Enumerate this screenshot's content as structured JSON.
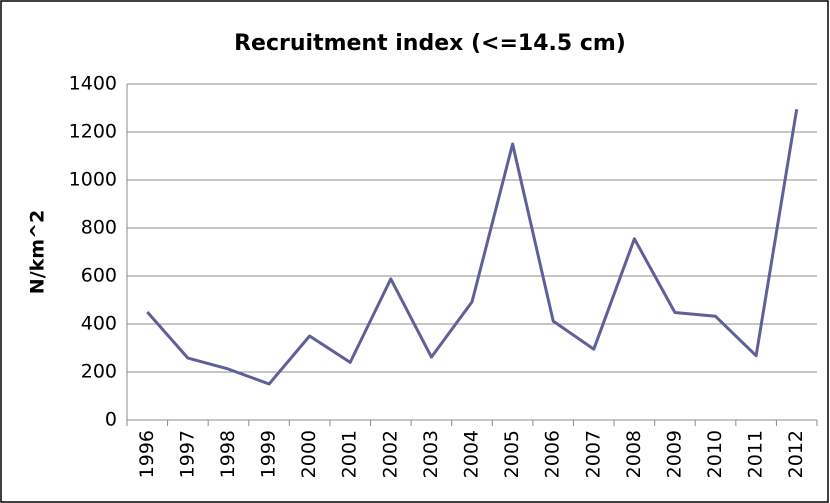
{
  "chart_data": {
    "type": "line",
    "title": "Recruitment index (<=14.5 cm)",
    "y_label": "N/km^2",
    "categories": [
      "1996",
      "1997",
      "1998",
      "1999",
      "2000",
      "2001",
      "2002",
      "2003",
      "2004",
      "2005",
      "2006",
      "2007",
      "2008",
      "2009",
      "2010",
      "2011",
      "2012"
    ],
    "values": [
      450,
      258,
      212,
      150,
      350,
      240,
      588,
      262,
      492,
      1150,
      412,
      295,
      755,
      448,
      432,
      268,
      1295
    ],
    "color": "#5f5f9a",
    "ylim": [
      0,
      1400
    ],
    "yticks": [
      0,
      200,
      400,
      600,
      800,
      1000,
      1200,
      1400
    ],
    "grid": true
  }
}
